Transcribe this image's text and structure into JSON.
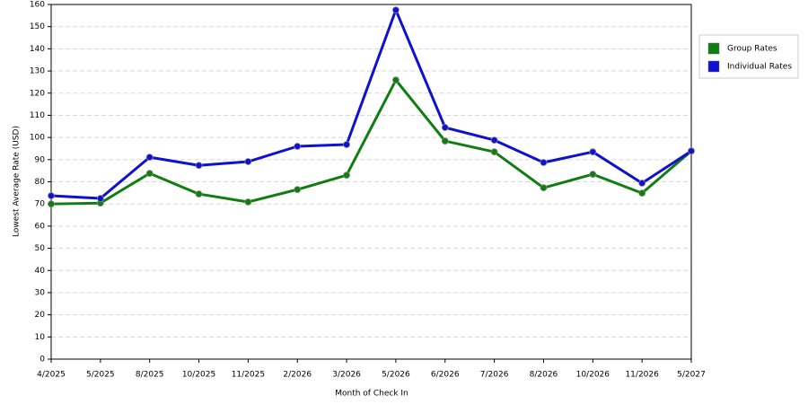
{
  "chart_data": {
    "type": "line",
    "x_label": "Month of Check In",
    "y_label": "Lowest Average Rate (USD)",
    "categories": [
      "4/2025",
      "5/2025",
      "8/2025",
      "10/2025",
      "11/2025",
      "2/2026",
      "3/2026",
      "5/2026",
      "6/2026",
      "7/2026",
      "8/2026",
      "10/2026",
      "11/2026",
      "5/2027"
    ],
    "series": [
      {
        "name": "Group Rates",
        "color": "#107d10",
        "values": [
          70.0,
          70.4,
          83.8,
          74.5,
          70.9,
          76.5,
          83.0,
          125.9,
          98.4,
          93.5,
          77.3,
          83.4,
          74.9,
          93.9
        ]
      },
      {
        "name": "Individual Rates",
        "color": "#1010d0",
        "values": [
          73.7,
          72.5,
          91.1,
          87.4,
          89.1,
          96.0,
          96.8,
          157.5,
          104.5,
          98.8,
          88.7,
          93.5,
          79.4,
          93.9
        ]
      }
    ],
    "ylim": [
      0,
      160
    ],
    "yticks": [
      0,
      10,
      20,
      30,
      40,
      50,
      60,
      70,
      80,
      90,
      100,
      110,
      120,
      130,
      140,
      150,
      160
    ],
    "grid": true,
    "legend": "right"
  }
}
